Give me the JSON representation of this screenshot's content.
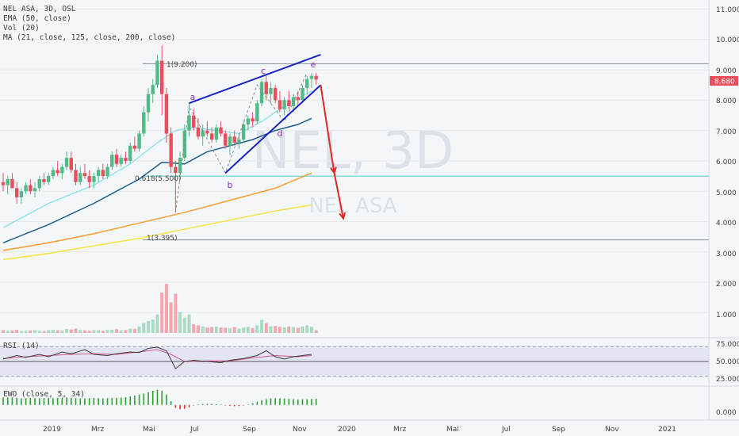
{
  "colors": {
    "background": "#f4f7fa",
    "up_candle": "#53b987",
    "down_candle": "#eb4d5c",
    "vol_up": "#a9dcc3",
    "vol_down": "#f5a6ae",
    "ema50": "#1f5f8b",
    "ma21": "#7fdfe8",
    "ma125": "#f7a13a",
    "ma200": "#f2e54a",
    "wedge": "#1c22c8",
    "projection": "#e32626",
    "rsi": "#3a3a3a",
    "rsi_signal": "#d9558f",
    "ewo_up": "#2fa12f",
    "ewo_down": "#e0342a",
    "price_tag": "#eb4d5c"
  },
  "legend": {
    "symbol_line": "NEL ASA, 3D, OSL",
    "ema_line": "EMA (50, close)",
    "vol_line": "Vol (20)",
    "ma_line": "MA (21, close, 125, close, 200, close)"
  },
  "watermark": {
    "ticker": "NEL, 3D",
    "name": "NEL ASA"
  },
  "price_axis": {
    "ticks": [
      "11.000",
      "10.000",
      "9.000",
      "8.000",
      "7.000",
      "6.000",
      "5.000",
      "4.000",
      "3.000",
      "2.000",
      "1.000"
    ],
    "last_price": "8.680"
  },
  "rsi_panel": {
    "label": "RSI (14)",
    "ticks": [
      "75.000",
      "50.000",
      "25.000"
    ]
  },
  "ewo_panel": {
    "label": "EWO (close, 5, 34)",
    "ticks": [
      "0.000"
    ]
  },
  "time_axis": [
    "2019",
    "Mrz",
    "Mai",
    "Jul",
    "Sep",
    "Nov",
    "2020",
    "Mrz",
    "Mai",
    "Jul",
    "Sep",
    "Nov",
    "2021"
  ],
  "annotations": {
    "wave_labels": [
      "a",
      "b",
      "c",
      "d",
      "e"
    ],
    "fib_top": "1(9.200)",
    "fib_mid": "0.618(5.500)",
    "fib_bottom": "1(3.395)"
  },
  "chart_data": {
    "type": "candlestick",
    "price_ylim": [
      0.2,
      11.3
    ],
    "horizontal_levels": [
      9.2,
      5.5,
      3.395
    ],
    "candles": [
      {
        "o": 5.3,
        "h": 5.6,
        "l": 5.0,
        "c": 5.2
      },
      {
        "o": 5.2,
        "h": 5.5,
        "l": 4.9,
        "c": 5.4
      },
      {
        "o": 5.4,
        "h": 5.6,
        "l": 5.1,
        "c": 5.1
      },
      {
        "o": 5.1,
        "h": 5.3,
        "l": 4.6,
        "c": 4.8
      },
      {
        "o": 4.8,
        "h": 5.1,
        "l": 4.6,
        "c": 5.0
      },
      {
        "o": 5.0,
        "h": 5.3,
        "l": 4.9,
        "c": 5.2
      },
      {
        "o": 5.2,
        "h": 5.4,
        "l": 4.9,
        "c": 5.0
      },
      {
        "o": 5.0,
        "h": 5.3,
        "l": 4.8,
        "c": 5.1
      },
      {
        "o": 5.1,
        "h": 5.5,
        "l": 5.0,
        "c": 5.4
      },
      {
        "o": 5.4,
        "h": 5.6,
        "l": 5.2,
        "c": 5.3
      },
      {
        "o": 5.3,
        "h": 5.6,
        "l": 5.2,
        "c": 5.5
      },
      {
        "o": 5.5,
        "h": 5.8,
        "l": 5.4,
        "c": 5.7
      },
      {
        "o": 5.7,
        "h": 6.0,
        "l": 5.5,
        "c": 5.6
      },
      {
        "o": 5.6,
        "h": 5.9,
        "l": 5.4,
        "c": 5.8
      },
      {
        "o": 5.8,
        "h": 6.3,
        "l": 5.7,
        "c": 6.1
      },
      {
        "o": 6.1,
        "h": 6.3,
        "l": 5.6,
        "c": 5.7
      },
      {
        "o": 5.7,
        "h": 5.9,
        "l": 5.2,
        "c": 5.3
      },
      {
        "o": 5.3,
        "h": 5.8,
        "l": 5.2,
        "c": 5.6
      },
      {
        "o": 5.6,
        "h": 5.9,
        "l": 5.4,
        "c": 5.5
      },
      {
        "o": 5.5,
        "h": 5.7,
        "l": 5.1,
        "c": 5.3
      },
      {
        "o": 5.3,
        "h": 5.6,
        "l": 5.1,
        "c": 5.5
      },
      {
        "o": 5.5,
        "h": 5.8,
        "l": 5.3,
        "c": 5.7
      },
      {
        "o": 5.7,
        "h": 5.9,
        "l": 5.4,
        "c": 5.5
      },
      {
        "o": 5.5,
        "h": 5.9,
        "l": 5.4,
        "c": 5.8
      },
      {
        "o": 5.8,
        "h": 6.3,
        "l": 5.7,
        "c": 6.2
      },
      {
        "o": 6.2,
        "h": 6.4,
        "l": 5.8,
        "c": 5.9
      },
      {
        "o": 5.9,
        "h": 6.2,
        "l": 5.8,
        "c": 6.1
      },
      {
        "o": 6.1,
        "h": 6.3,
        "l": 5.9,
        "c": 6.0
      },
      {
        "o": 6.0,
        "h": 6.6,
        "l": 5.9,
        "c": 6.5
      },
      {
        "o": 6.5,
        "h": 6.8,
        "l": 6.3,
        "c": 6.4
      },
      {
        "o": 6.4,
        "h": 7.0,
        "l": 6.3,
        "c": 6.9
      },
      {
        "o": 6.9,
        "h": 7.8,
        "l": 6.8,
        "c": 7.6
      },
      {
        "o": 7.6,
        "h": 8.4,
        "l": 7.3,
        "c": 8.2
      },
      {
        "o": 8.2,
        "h": 8.7,
        "l": 7.9,
        "c": 8.5
      },
      {
        "o": 8.5,
        "h": 9.5,
        "l": 8.4,
        "c": 9.3
      },
      {
        "o": 9.3,
        "h": 9.8,
        "l": 7.5,
        "c": 8.2
      },
      {
        "o": 8.2,
        "h": 8.4,
        "l": 6.6,
        "c": 6.9
      },
      {
        "o": 6.9,
        "h": 7.1,
        "l": 5.6,
        "c": 5.8
      },
      {
        "o": 5.8,
        "h": 6.0,
        "l": 4.3,
        "c": 5.6
      },
      {
        "o": 5.6,
        "h": 6.3,
        "l": 5.4,
        "c": 6.1
      },
      {
        "o": 6.1,
        "h": 7.2,
        "l": 6.0,
        "c": 7.0
      },
      {
        "o": 7.0,
        "h": 7.9,
        "l": 6.8,
        "c": 7.5
      },
      {
        "o": 7.5,
        "h": 7.7,
        "l": 7.0,
        "c": 7.1
      },
      {
        "o": 7.1,
        "h": 7.4,
        "l": 6.7,
        "c": 6.8
      },
      {
        "o": 6.8,
        "h": 7.2,
        "l": 6.5,
        "c": 7.0
      },
      {
        "o": 7.0,
        "h": 7.3,
        "l": 6.8,
        "c": 6.9
      },
      {
        "o": 6.9,
        "h": 7.1,
        "l": 6.6,
        "c": 6.7
      },
      {
        "o": 6.7,
        "h": 7.2,
        "l": 6.6,
        "c": 7.1
      },
      {
        "o": 7.1,
        "h": 7.3,
        "l": 6.8,
        "c": 6.9
      },
      {
        "o": 6.9,
        "h": 7.0,
        "l": 6.4,
        "c": 6.5
      },
      {
        "o": 6.5,
        "h": 6.9,
        "l": 6.2,
        "c": 6.8
      },
      {
        "o": 6.8,
        "h": 7.0,
        "l": 6.5,
        "c": 6.6
      },
      {
        "o": 6.6,
        "h": 6.9,
        "l": 6.4,
        "c": 6.7
      },
      {
        "o": 6.7,
        "h": 7.3,
        "l": 6.6,
        "c": 7.2
      },
      {
        "o": 7.2,
        "h": 7.5,
        "l": 7.0,
        "c": 7.4
      },
      {
        "o": 7.4,
        "h": 7.6,
        "l": 7.1,
        "c": 7.3
      },
      {
        "o": 7.3,
        "h": 8.0,
        "l": 7.2,
        "c": 7.9
      },
      {
        "o": 7.9,
        "h": 8.7,
        "l": 7.8,
        "c": 8.6
      },
      {
        "o": 8.6,
        "h": 8.8,
        "l": 8.0,
        "c": 8.2
      },
      {
        "o": 8.2,
        "h": 8.6,
        "l": 7.9,
        "c": 8.4
      },
      {
        "o": 8.4,
        "h": 8.5,
        "l": 7.9,
        "c": 8.0
      },
      {
        "o": 8.0,
        "h": 8.3,
        "l": 7.6,
        "c": 7.7
      },
      {
        "o": 7.7,
        "h": 8.1,
        "l": 7.5,
        "c": 8.0
      },
      {
        "o": 8.0,
        "h": 8.3,
        "l": 7.7,
        "c": 7.8
      },
      {
        "o": 7.8,
        "h": 8.2,
        "l": 7.6,
        "c": 8.1
      },
      {
        "o": 8.1,
        "h": 8.3,
        "l": 7.8,
        "c": 8.0
      },
      {
        "o": 8.0,
        "h": 8.5,
        "l": 7.9,
        "c": 8.4
      },
      {
        "o": 8.4,
        "h": 8.8,
        "l": 8.2,
        "c": 8.7
      },
      {
        "o": 8.7,
        "h": 8.9,
        "l": 8.4,
        "c": 8.8
      },
      {
        "o": 8.8,
        "h": 8.9,
        "l": 8.5,
        "c": 8.68
      }
    ],
    "volume": [
      0.13,
      0.1,
      0.12,
      0.14,
      0.09,
      0.1,
      0.11,
      0.12,
      0.1,
      0.09,
      0.13,
      0.15,
      0.12,
      0.11,
      0.18,
      0.16,
      0.2,
      0.14,
      0.12,
      0.1,
      0.13,
      0.12,
      0.1,
      0.14,
      0.15,
      0.17,
      0.12,
      0.13,
      0.2,
      0.18,
      0.3,
      0.45,
      0.55,
      0.62,
      0.85,
      1.85,
      2.25,
      1.4,
      1.8,
      0.95,
      0.7,
      0.85,
      0.4,
      0.35,
      0.3,
      0.25,
      0.28,
      0.3,
      0.25,
      0.24,
      0.22,
      0.27,
      0.2,
      0.25,
      0.28,
      0.22,
      0.35,
      0.6,
      0.45,
      0.3,
      0.32,
      0.28,
      0.26,
      0.3,
      0.27,
      0.24,
      0.3,
      0.35,
      0.28,
      0.12
    ],
    "volume_ylim": [
      0,
      4.0
    ],
    "ema50": [
      [
        0,
        3.3
      ],
      [
        10,
        3.9
      ],
      [
        20,
        4.6
      ],
      [
        30,
        5.4
      ],
      [
        35,
        5.95
      ],
      [
        40,
        5.9
      ],
      [
        45,
        6.3
      ],
      [
        50,
        6.5
      ],
      [
        55,
        6.7
      ],
      [
        60,
        7.0
      ],
      [
        65,
        7.2
      ],
      [
        68,
        7.4
      ]
    ],
    "ma21": [
      [
        0,
        3.8
      ],
      [
        10,
        4.6
      ],
      [
        20,
        5.2
      ],
      [
        28,
        5.9
      ],
      [
        34,
        6.6
      ],
      [
        38,
        7.0
      ],
      [
        42,
        7.1
      ],
      [
        47,
        7.0
      ],
      [
        52,
        6.9
      ],
      [
        57,
        7.3
      ],
      [
        62,
        7.8
      ],
      [
        68,
        8.3
      ]
    ],
    "ma125": [
      [
        0,
        3.05
      ],
      [
        10,
        3.3
      ],
      [
        20,
        3.6
      ],
      [
        30,
        3.95
      ],
      [
        40,
        4.3
      ],
      [
        50,
        4.7
      ],
      [
        60,
        5.1
      ],
      [
        68,
        5.6
      ]
    ],
    "ma200": [
      [
        0,
        2.75
      ],
      [
        10,
        2.95
      ],
      [
        20,
        3.2
      ],
      [
        30,
        3.45
      ],
      [
        40,
        3.75
      ],
      [
        50,
        4.05
      ],
      [
        60,
        4.35
      ],
      [
        68,
        4.55
      ]
    ],
    "wave_points": [
      [
        38,
        4.3
      ],
      [
        41,
        7.8
      ],
      [
        49,
        5.6
      ],
      [
        56,
        8.5
      ],
      [
        62,
        7.3
      ],
      [
        67,
        8.9
      ]
    ],
    "wedge_upper": [
      [
        41,
        7.9
      ],
      [
        70,
        9.5
      ]
    ],
    "wedge_lower": [
      [
        49,
        5.6
      ],
      [
        70,
        8.5
      ]
    ],
    "projection": [
      [
        70,
        8.5
      ],
      [
        73,
        5.6
      ],
      [
        75,
        4.1
      ]
    ],
    "rsi": [
      [
        0,
        54
      ],
      [
        3,
        60
      ],
      [
        5,
        57
      ],
      [
        8,
        62
      ],
      [
        10,
        58
      ],
      [
        13,
        66
      ],
      [
        15,
        63
      ],
      [
        18,
        70
      ],
      [
        20,
        62
      ],
      [
        23,
        60
      ],
      [
        25,
        63
      ],
      [
        28,
        66
      ],
      [
        30,
        65
      ],
      [
        32,
        72
      ],
      [
        34,
        74
      ],
      [
        36,
        68
      ],
      [
        38,
        38
      ],
      [
        40,
        50
      ],
      [
        42,
        52
      ],
      [
        45,
        50
      ],
      [
        48,
        48
      ],
      [
        50,
        52
      ],
      [
        53,
        55
      ],
      [
        56,
        60
      ],
      [
        58,
        68
      ],
      [
        60,
        58
      ],
      [
        62,
        54
      ],
      [
        64,
        58
      ],
      [
        66,
        60
      ],
      [
        68,
        62
      ]
    ],
    "rsi_signal": [
      [
        0,
        55
      ],
      [
        5,
        58
      ],
      [
        10,
        60
      ],
      [
        15,
        62
      ],
      [
        20,
        63
      ],
      [
        25,
        62
      ],
      [
        30,
        66
      ],
      [
        34,
        70
      ],
      [
        37,
        62
      ],
      [
        40,
        50
      ],
      [
        45,
        51
      ],
      [
        50,
        51
      ],
      [
        55,
        56
      ],
      [
        60,
        60
      ],
      [
        65,
        58
      ],
      [
        68,
        60
      ]
    ],
    "rsi_ylim": [
      10,
      90
    ],
    "ewo": [
      0.8,
      0.8,
      0.8,
      0.75,
      0.7,
      0.72,
      0.74,
      0.72,
      0.7,
      0.74,
      0.75,
      0.73,
      0.75,
      0.78,
      0.8,
      0.76,
      0.72,
      0.7,
      0.7,
      0.72,
      0.74,
      0.72,
      0.7,
      0.72,
      0.74,
      0.76,
      0.78,
      0.82,
      0.9,
      1.0,
      1.1,
      1.2,
      1.35,
      1.5,
      1.6,
      1.5,
      1.1,
      0.4,
      -0.3,
      -0.45,
      -0.4,
      -0.25,
      -0.05,
      0.05,
      0.1,
      0.12,
      0.1,
      0.08,
      0.05,
      -0.05,
      -0.1,
      -0.12,
      -0.1,
      -0.05,
      0.05,
      0.2,
      0.35,
      0.5,
      0.6,
      0.7,
      0.72,
      0.7,
      0.68,
      0.65,
      0.6,
      0.58,
      0.6,
      0.62,
      0.64,
      0.66
    ],
    "ewo_ylim": [
      -1.6,
      2.0
    ]
  }
}
